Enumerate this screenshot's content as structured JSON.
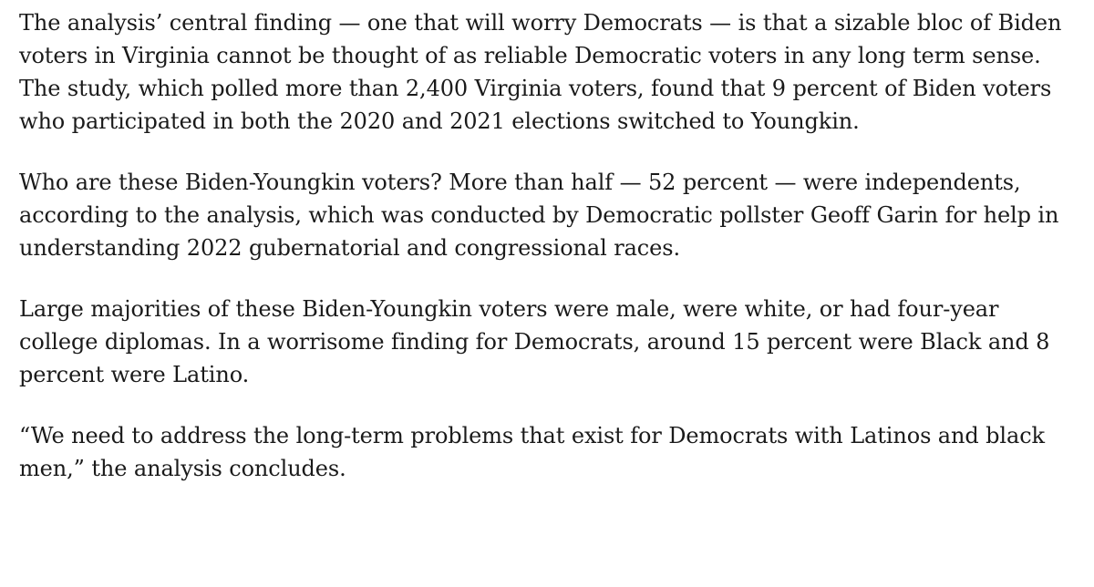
{
  "article": {
    "paragraphs": [
      "The analysis’ central finding — one that will worry Democrats — is that a sizable bloc of Biden voters in Virginia cannot be thought of as reliable Democratic voters in any long term sense. The study, which polled more than 2,400 Virginia voters, found that 9 percent of Biden voters who participated in both the 2020 and 2021 elections switched to Youngkin.",
      "Who are these Biden-Youngkin voters? More than half — 52 percent — were independents, according to the analysis, which was conducted by Democratic pollster Geoff Garin for help in understanding 2022 gubernatorial and congressional races.",
      "Large majorities of these Biden-Youngkin voters were male, were white, or had four-year college diplomas. In a worrisome finding for Democrats, around 15 percent were Black and 8 percent were Latino.",
      "“We need to address the long-term problems that exist for Democrats with Latinos and black men,” the analysis concludes."
    ]
  }
}
